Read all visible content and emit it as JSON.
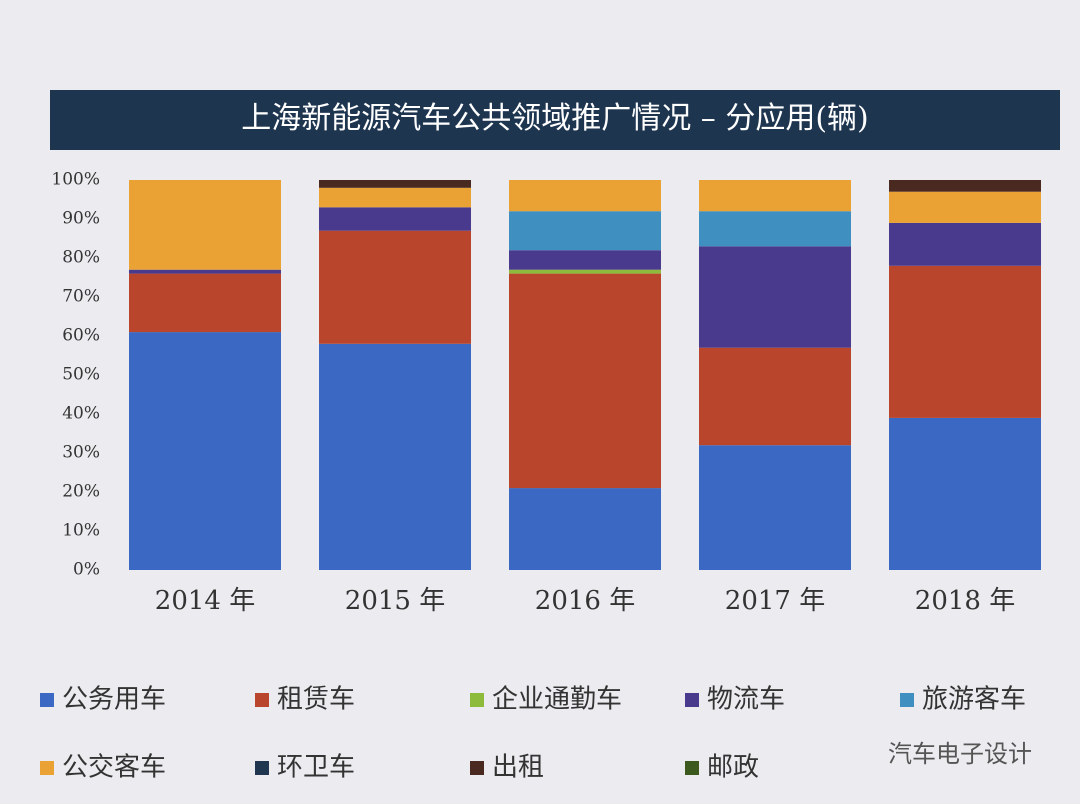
{
  "chart_data": {
    "type": "stacked_bar",
    "title": "上海新能源汽车公共领域推广情况 – 分应用(辆)",
    "categories": [
      "2014 年",
      "2015 年",
      "2016 年",
      "2017 年",
      "2018 年"
    ],
    "series": [
      {
        "name": "公务用车",
        "color": "#3a68c2",
        "values": [
          61,
          58,
          21,
          32,
          39
        ]
      },
      {
        "name": "租赁车",
        "color": "#b8452c",
        "values": [
          15,
          29,
          55,
          25,
          39
        ]
      },
      {
        "name": "企业通勤车",
        "color": "#8fbb3c",
        "values": [
          0,
          0,
          1,
          0,
          0
        ]
      },
      {
        "name": "物流车",
        "color": "#4a3a8e",
        "values": [
          1,
          6,
          5,
          26,
          11
        ]
      },
      {
        "name": "旅游客车",
        "color": "#3f8fc0",
        "values": [
          0,
          0,
          10,
          9,
          0
        ]
      },
      {
        "name": "公交客车",
        "color": "#e9a233",
        "values": [
          23,
          5,
          8,
          8,
          8
        ]
      },
      {
        "name": "环卫车",
        "color": "#1f3550",
        "values": [
          0,
          0,
          0,
          0,
          0
        ]
      },
      {
        "name": "出租",
        "color": "#4a2a20",
        "values": [
          0,
          2,
          0,
          0,
          3
        ]
      },
      {
        "name": "邮政",
        "color": "#3d5a1e",
        "values": [
          0,
          0,
          0,
          0,
          0
        ]
      }
    ],
    "ylim": [
      0,
      100
    ],
    "yticks": [
      {
        "value": 0,
        "label": "0%"
      },
      {
        "value": 10,
        "label": "10%"
      },
      {
        "value": 20,
        "label": "20%"
      },
      {
        "value": 30,
        "label": "30%"
      },
      {
        "value": 40,
        "label": "40%"
      },
      {
        "value": 50,
        "label": "50%"
      },
      {
        "value": 60,
        "label": "60%"
      },
      {
        "value": 70,
        "label": "70%"
      },
      {
        "value": 80,
        "label": "80%"
      },
      {
        "value": 90,
        "label": "90%"
      },
      {
        "value": 100,
        "label": "100%"
      }
    ],
    "watermark": "汽车电子设计"
  }
}
